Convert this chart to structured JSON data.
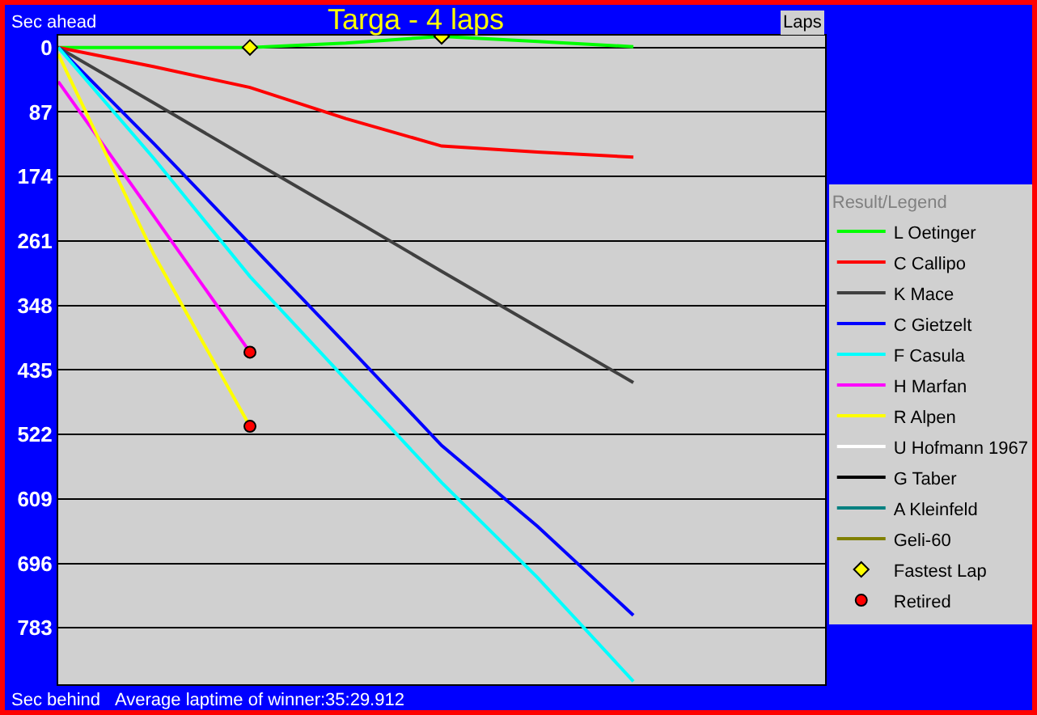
{
  "chart_data": {
    "type": "line",
    "title": "Targa - 4 laps",
    "xlabel": "Laps",
    "ylabel": "Sec ahead",
    "legend_title": "Result/Legend",
    "legend": "right",
    "grid": "y",
    "tick_labels": "y",
    "line_style": "solid",
    "annotations": [
      "Sec behind",
      "Average laptime of winner:35:29.912"
    ],
    "categories": [
      null,
      null,
      null,
      null,
      null,
      null,
      null,
      null,
      null
    ],
    "ylim": [
      859,
      -16
    ],
    "yticks": [
      0,
      87,
      174,
      261,
      348,
      435,
      522,
      609,
      696,
      783
    ],
    "series": [
      {
        "name": "L Oetinger",
        "color": "#00ff00",
        "values": [
          0,
          0,
          0,
          -6,
          -15,
          -8,
          -1,
          null,
          null
        ]
      },
      {
        "name": "C Callipo",
        "color": "#ff0000",
        "values": [
          0,
          26,
          54,
          96,
          133,
          141,
          148,
          null,
          null
        ]
      },
      {
        "name": "K Mace",
        "color": "#404040",
        "values": [
          0,
          75,
          151,
          226,
          302,
          377,
          452,
          null,
          null
        ]
      },
      {
        "name": "C Gietzelt",
        "color": "#0000ff",
        "values": [
          0,
          130,
          265,
          400,
          537,
          646,
          766,
          null,
          null
        ]
      },
      {
        "name": "F Casula",
        "color": "#00ffff",
        "values": [
          0,
          150,
          309,
          448,
          587,
          715,
          855,
          null,
          null
        ]
      },
      {
        "name": "H Marfan",
        "color": "#ff00ff",
        "values": [
          46,
          228,
          411,
          null,
          null,
          null,
          null,
          null,
          null
        ]
      },
      {
        "name": "R Alpen",
        "color": "#ffff00",
        "values": [
          9,
          280,
          511,
          null,
          null,
          null,
          null,
          null,
          null
        ]
      },
      {
        "name": "U Hofmann 1967",
        "color": "#ffffff",
        "values": [
          null,
          null,
          null,
          null,
          null,
          null,
          null,
          null,
          null
        ]
      },
      {
        "name": "G Taber",
        "color": "#000000",
        "values": [
          null,
          null,
          null,
          null,
          null,
          null,
          null,
          null,
          null
        ]
      },
      {
        "name": "A Kleinfeld",
        "color": "#008080",
        "values": [
          null,
          null,
          null,
          null,
          null,
          null,
          null,
          null,
          null
        ]
      },
      {
        "name": "Geli-60",
        "color": "#808000",
        "values": [
          null,
          null,
          null,
          null,
          null,
          null,
          null,
          null,
          null
        ]
      },
      {
        "name": "Fastest Lap",
        "type": "scatter",
        "color": "#ffff00",
        "marker": "diamond",
        "values": [
          null,
          null,
          0,
          null,
          -15,
          null,
          null,
          null,
          null
        ]
      },
      {
        "name": "Retired",
        "type": "scatter",
        "color": "#ff0000",
        "marker": "circle",
        "values": [
          null,
          null,
          411,
          null,
          null,
          null,
          null,
          null,
          null
        ]
      },
      {
        "type": "scatter",
        "color": "#ff0000",
        "marker": "circle",
        "values": [
          null,
          null,
          511,
          null,
          null,
          null,
          null,
          null,
          null
        ]
      }
    ]
  }
}
